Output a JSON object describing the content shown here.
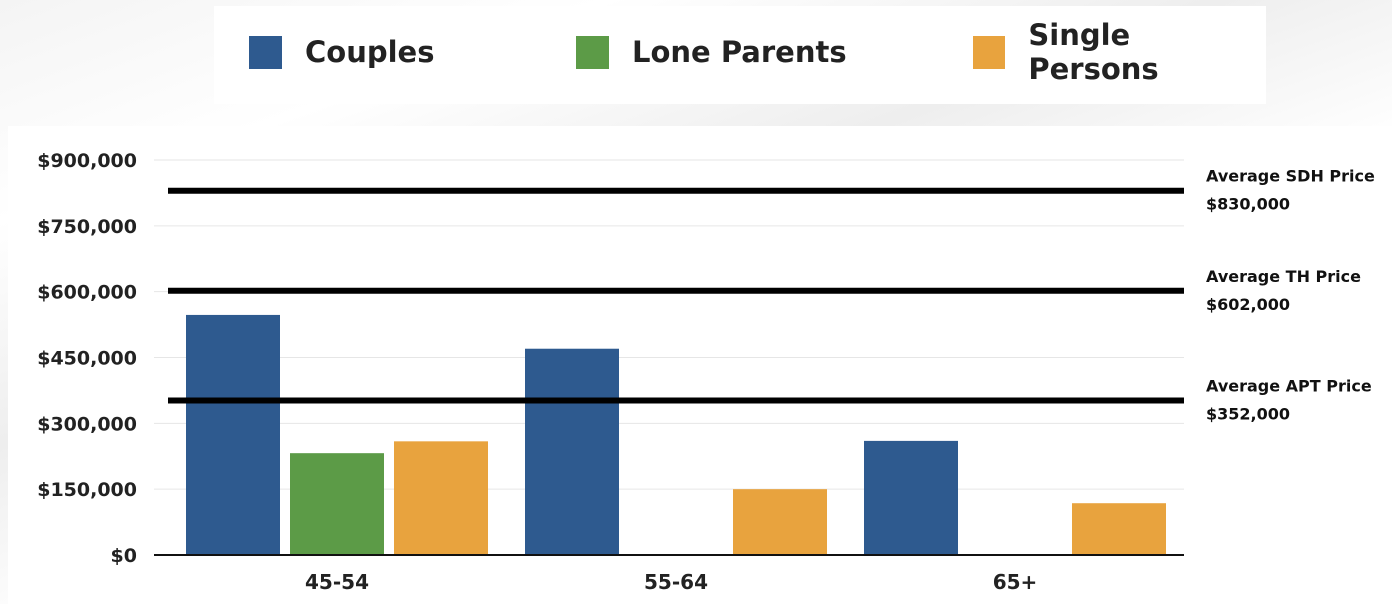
{
  "legend": [
    {
      "label": "Couples",
      "color": "#2e5a8f"
    },
    {
      "label": "Lone Parents",
      "color": "#5c9b47"
    },
    {
      "label": "Single Persons",
      "color": "#e8a33e"
    }
  ],
  "chart_data": {
    "type": "bar",
    "categories": [
      "45-54",
      "55-64",
      "65+"
    ],
    "series": [
      {
        "name": "Couples",
        "color": "#2e5a8f",
        "values": [
          547000,
          470000,
          260000
        ]
      },
      {
        "name": "Lone Parents",
        "color": "#5c9b47",
        "values": [
          232000,
          0,
          0
        ]
      },
      {
        "name": "Single Persons",
        "color": "#e8a33e",
        "values": [
          259000,
          150000,
          118000
        ]
      }
    ],
    "ylim": [
      0,
      900000
    ],
    "yticks": [
      0,
      150000,
      300000,
      450000,
      600000,
      750000,
      900000
    ],
    "ytick_labels": [
      "$0",
      "$150,000",
      "$300,000",
      "$450,000",
      "$600,000",
      "$750,000",
      "$900,000"
    ],
    "reference_lines": [
      {
        "value": 830000,
        "label": "Average SDH Price",
        "value_label": "$830,000"
      },
      {
        "value": 602000,
        "label": "Average TH Price",
        "value_label": "$602,000"
      },
      {
        "value": 352000,
        "label": "Average APT Price",
        "value_label": "$352,000"
      }
    ],
    "grid": true,
    "legend_position": "top"
  }
}
